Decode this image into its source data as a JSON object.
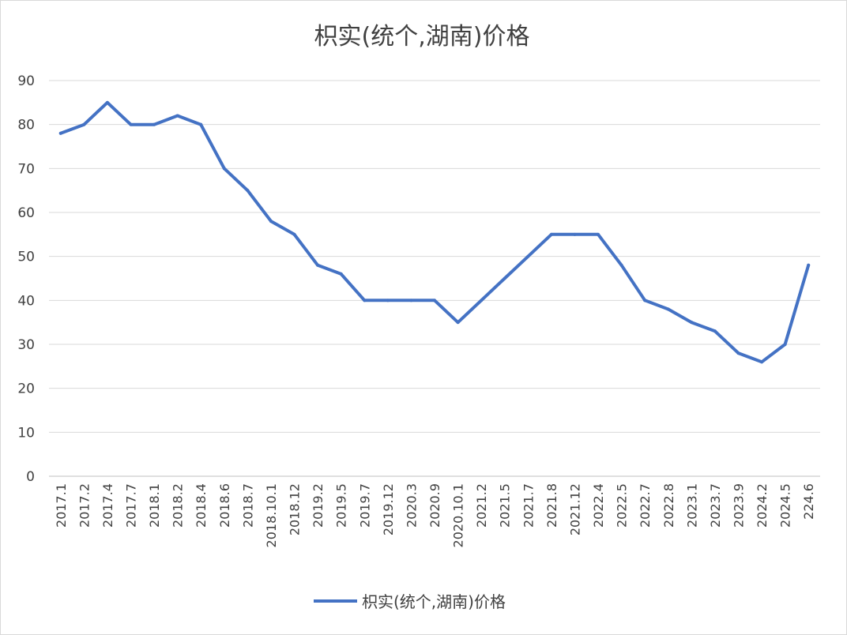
{
  "chart_data": {
    "type": "line",
    "title": "枳实(统个,湖南)价格",
    "xlabel": "",
    "ylabel": "",
    "ylim": [
      0,
      90
    ],
    "yticks": [
      0,
      10,
      20,
      30,
      40,
      50,
      60,
      70,
      80,
      90
    ],
    "grid": true,
    "legend_position": "bottom",
    "categories": [
      "2017.1",
      "2017.2",
      "2017.4",
      "2017.7",
      "2018.1",
      "2018.2",
      "2018.4",
      "2018.6",
      "2018.7",
      "2018.10.1",
      "2018.12",
      "2019.2",
      "2019.5",
      "2019.7",
      "2019.12",
      "2020.3",
      "2020.9",
      "2020.10.1",
      "2021.2",
      "2021.5",
      "2021.7",
      "2021.8",
      "2021.12",
      "2022.4",
      "2022.5",
      "2022.7",
      "2022.8",
      "2023.1",
      "2023.7",
      "2023.9",
      "2024.2",
      "2024.5",
      "224.6"
    ],
    "series": [
      {
        "name": "枳实(统个,湖南)价格",
        "color": "#4472c4",
        "values": [
          78,
          80,
          85,
          80,
          80,
          82,
          80,
          70,
          65,
          58,
          55,
          48,
          46,
          40,
          40,
          40,
          40,
          35,
          40,
          45,
          50,
          55,
          55,
          55,
          48,
          40,
          38,
          35,
          33,
          28,
          26,
          30,
          48
        ]
      }
    ]
  }
}
